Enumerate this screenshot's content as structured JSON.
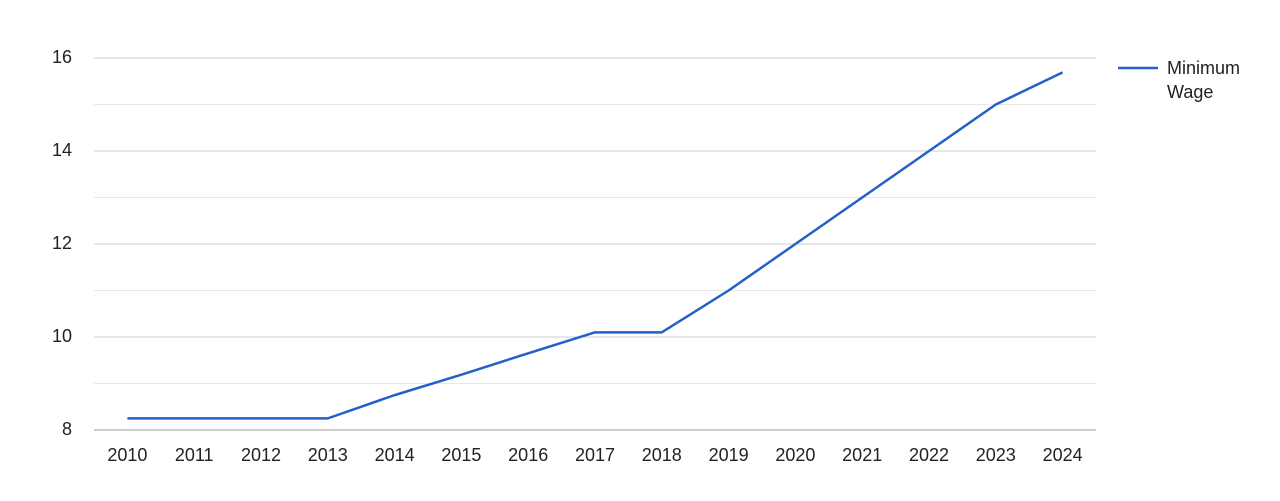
{
  "chart_data": {
    "type": "line",
    "categories": [
      "2010",
      "2011",
      "2012",
      "2013",
      "2014",
      "2015",
      "2016",
      "2017",
      "2018",
      "2019",
      "2020",
      "2021",
      "2022",
      "2023",
      "2024"
    ],
    "series": [
      {
        "name": "Minimum Wage",
        "color": "#2360c9",
        "values": [
          8.25,
          8.25,
          8.25,
          8.25,
          8.75,
          9.19,
          9.65,
          10.1,
          10.1,
          11,
          12,
          13,
          14,
          15,
          15.69
        ]
      }
    ],
    "ylim": [
      8,
      16
    ],
    "yticks": [
      8,
      10,
      12,
      14,
      16
    ],
    "minor_yticks": [
      9,
      11,
      13,
      15
    ],
    "grid": true,
    "legend": "right"
  }
}
